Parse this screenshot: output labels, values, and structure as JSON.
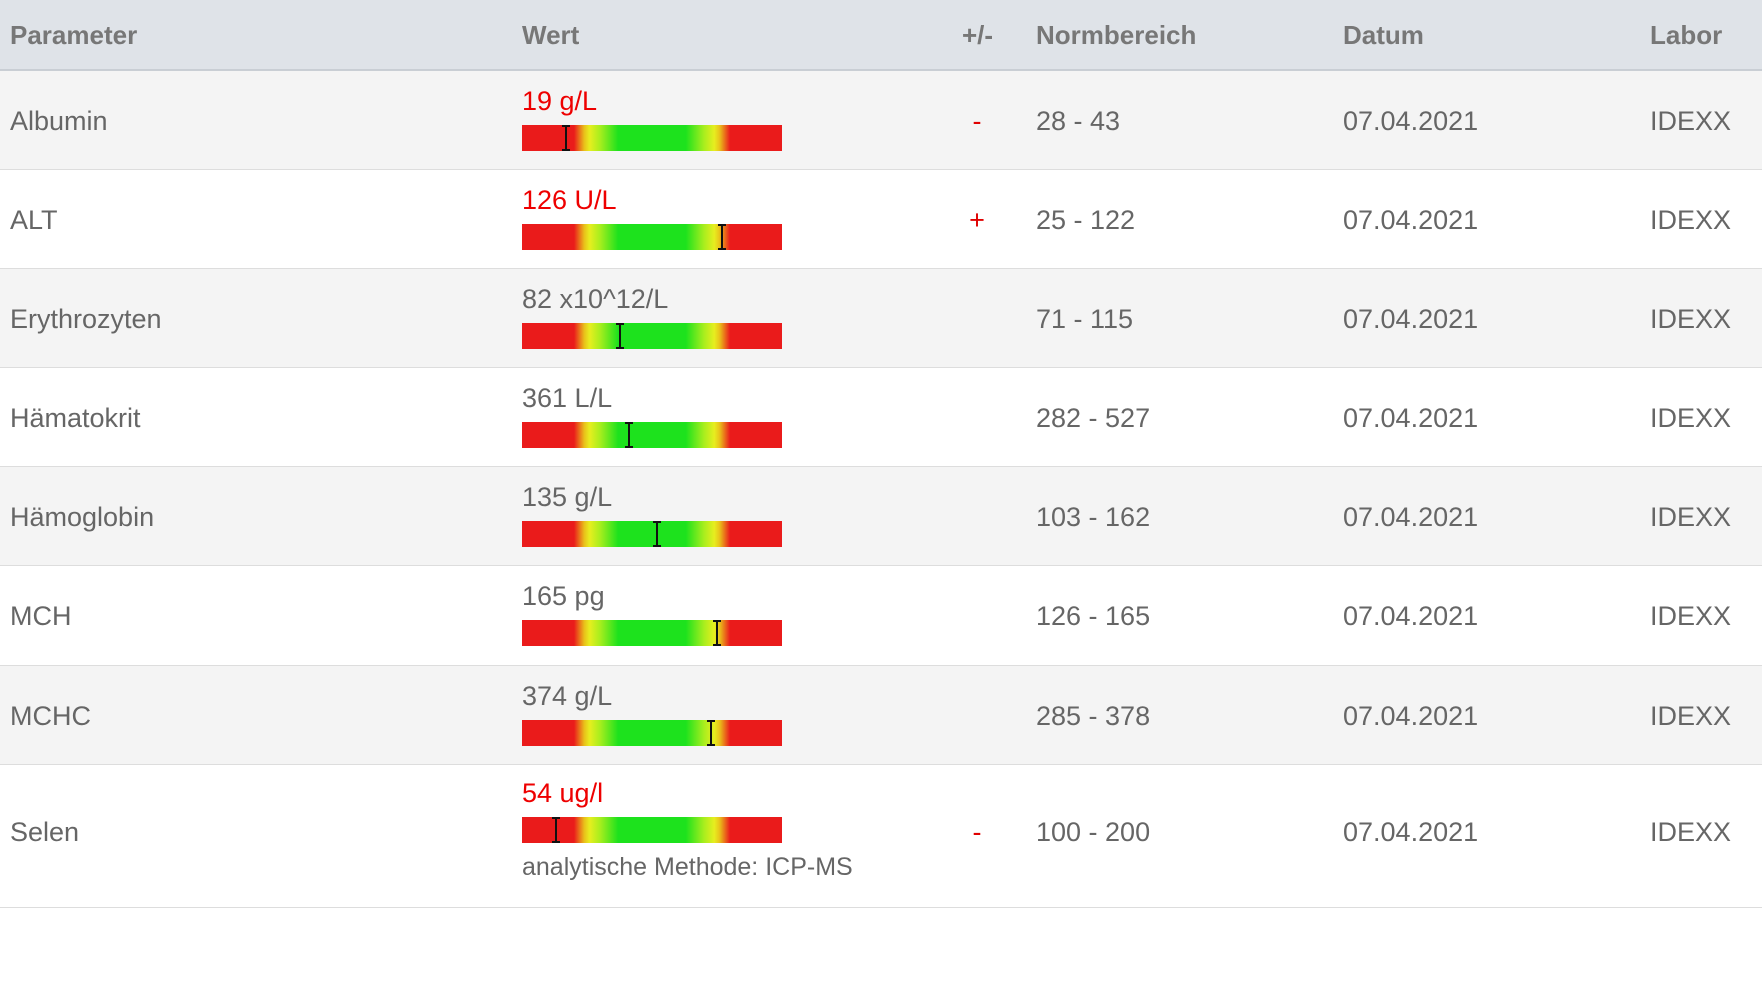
{
  "columns": {
    "parameter": "Parameter",
    "value": "Wert",
    "flag": "+/-",
    "normal_range": "Normbereich",
    "date": "Datum",
    "lab": "Labor"
  },
  "colors": {
    "out_of_range": "#ee0000",
    "normal_text": "#666666",
    "gauge_red": "#ea1b1b",
    "gauge_yellow": "#e7ee1f",
    "gauge_green": "#1de21d"
  },
  "rows": [
    {
      "parameter": "Albumin",
      "value": "19 g/L",
      "out_of_range": true,
      "flag": "-",
      "normal_range": "28 - 43",
      "date": "07.04.2021",
      "lab": "IDEXX",
      "gauge_fraction": 0.17,
      "note": ""
    },
    {
      "parameter": "ALT",
      "value": "126 U/L",
      "out_of_range": true,
      "flag": "+",
      "normal_range": "25 - 122",
      "date": "07.04.2021",
      "lab": "IDEXX",
      "gauge_fraction": 0.77,
      "note": ""
    },
    {
      "parameter": "Erythrozyten",
      "value": "82 x10^12/L",
      "out_of_range": false,
      "flag": "",
      "normal_range": "71 - 115",
      "date": "07.04.2021",
      "lab": "IDEXX",
      "gauge_fraction": 0.375,
      "note": ""
    },
    {
      "parameter": "Hämatokrit",
      "value": "361 L/L",
      "out_of_range": false,
      "flag": "",
      "normal_range": "282 - 527",
      "date": "07.04.2021",
      "lab": "IDEXX",
      "gauge_fraction": 0.41,
      "note": ""
    },
    {
      "parameter": "Hämoglobin",
      "value": "135 g/L",
      "out_of_range": false,
      "flag": "",
      "normal_range": "103 - 162",
      "date": "07.04.2021",
      "lab": "IDEXX",
      "gauge_fraction": 0.52,
      "note": ""
    },
    {
      "parameter": "MCH",
      "value": "165 pg",
      "out_of_range": false,
      "flag": "",
      "normal_range": "126 - 165",
      "date": "07.04.2021",
      "lab": "IDEXX",
      "gauge_fraction": 0.75,
      "note": ""
    },
    {
      "parameter": "MCHC",
      "value": "374 g/L",
      "out_of_range": false,
      "flag": "",
      "normal_range": "285 - 378",
      "date": "07.04.2021",
      "lab": "IDEXX",
      "gauge_fraction": 0.725,
      "note": ""
    },
    {
      "parameter": "Selen",
      "value": "54 ug/l",
      "out_of_range": true,
      "flag": "-",
      "normal_range": "100 - 200",
      "date": "07.04.2021",
      "lab": "IDEXX",
      "gauge_fraction": 0.13,
      "note": "analytische Methode: ICP-MS"
    }
  ]
}
